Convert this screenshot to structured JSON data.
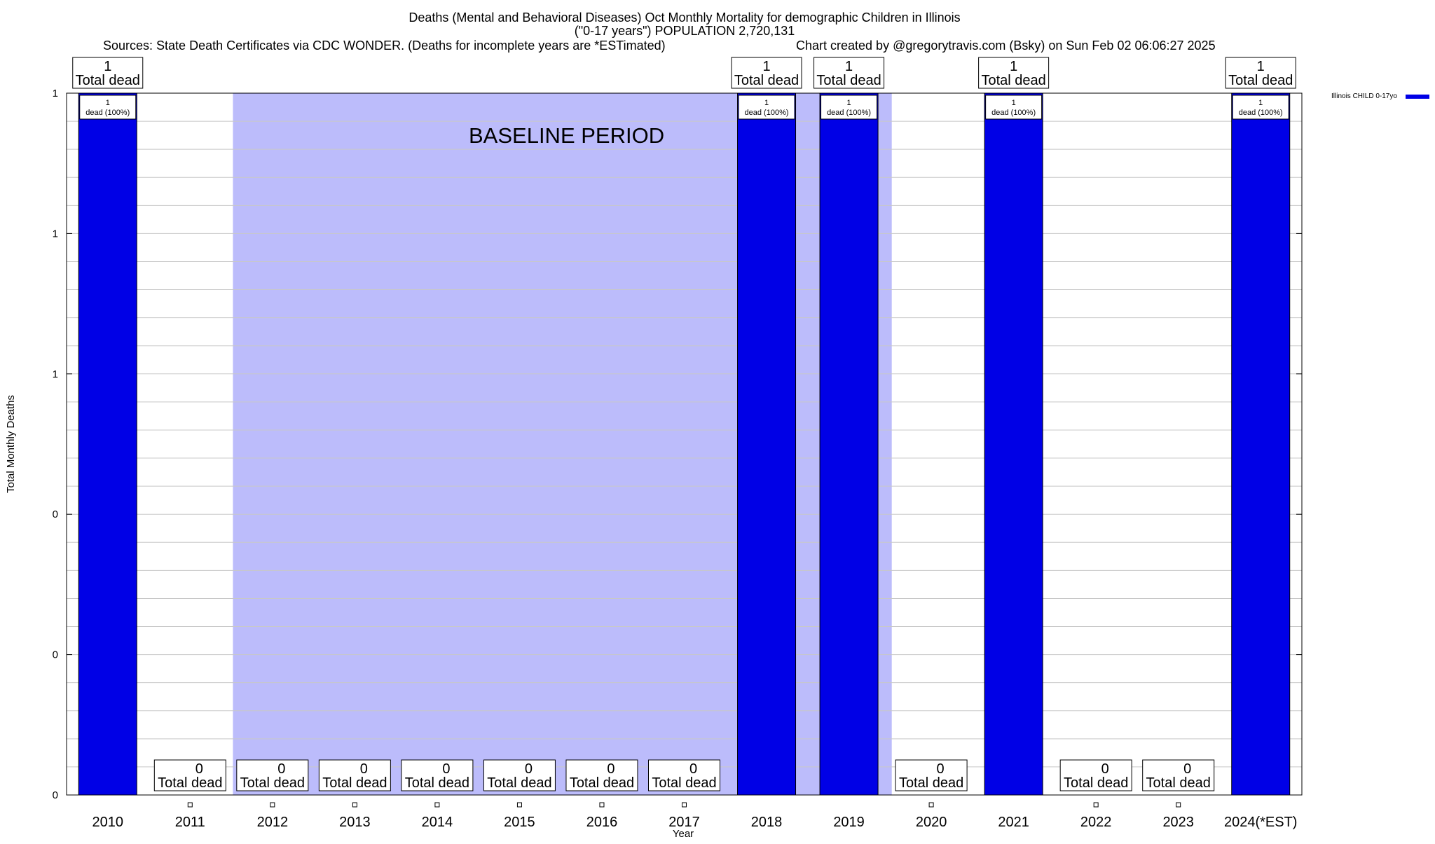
{
  "chart_data": {
    "type": "bar",
    "title_lines": [
      "Deaths (Mental and Behavioral Diseases) Oct Monthly Mortality for demographic Children in Illinois",
      "(\"0-17 years\") POPULATION 2,720,131"
    ],
    "sources_text": "Sources: State Death Certificates via CDC WONDER. (Deaths for incomplete years are *ESTimated)",
    "credit_text": "Chart created by @gregorytravis.com (Bsky) on Sun Feb 02 06:06:27 2025",
    "xlabel": "Year",
    "ylabel": "Total Monthly Deaths",
    "ylim": [
      0,
      1
    ],
    "ytick_values": [
      0,
      0.2,
      0.4,
      0.6,
      0.8,
      1.0
    ],
    "ytick_labels": [
      "0",
      "0",
      "0",
      "1",
      "1",
      "1"
    ],
    "minor_grid_step": 0.04,
    "grid": true,
    "categories": [
      "2010",
      "2011",
      "2012",
      "2013",
      "2014",
      "2015",
      "2016",
      "2017",
      "2018",
      "2019",
      "2020",
      "2021",
      "2022",
      "2023",
      "2024(*EST)"
    ],
    "series": [
      {
        "name": "Illinois CHILD 0-17yo",
        "color": "#0000e6",
        "values": [
          1,
          0,
          0,
          0,
          0,
          0,
          0,
          0,
          1,
          1,
          0,
          1,
          0,
          0,
          1
        ]
      }
    ],
    "total_label_suffix": "Total dead",
    "bar_label_suffix": "dead (100%)",
    "baseline_band": {
      "label": "BASELINE PERIOD",
      "from_category": "2011",
      "to_category": "2019",
      "color": "#bcbcfb"
    },
    "legend_placement": "top-right"
  }
}
